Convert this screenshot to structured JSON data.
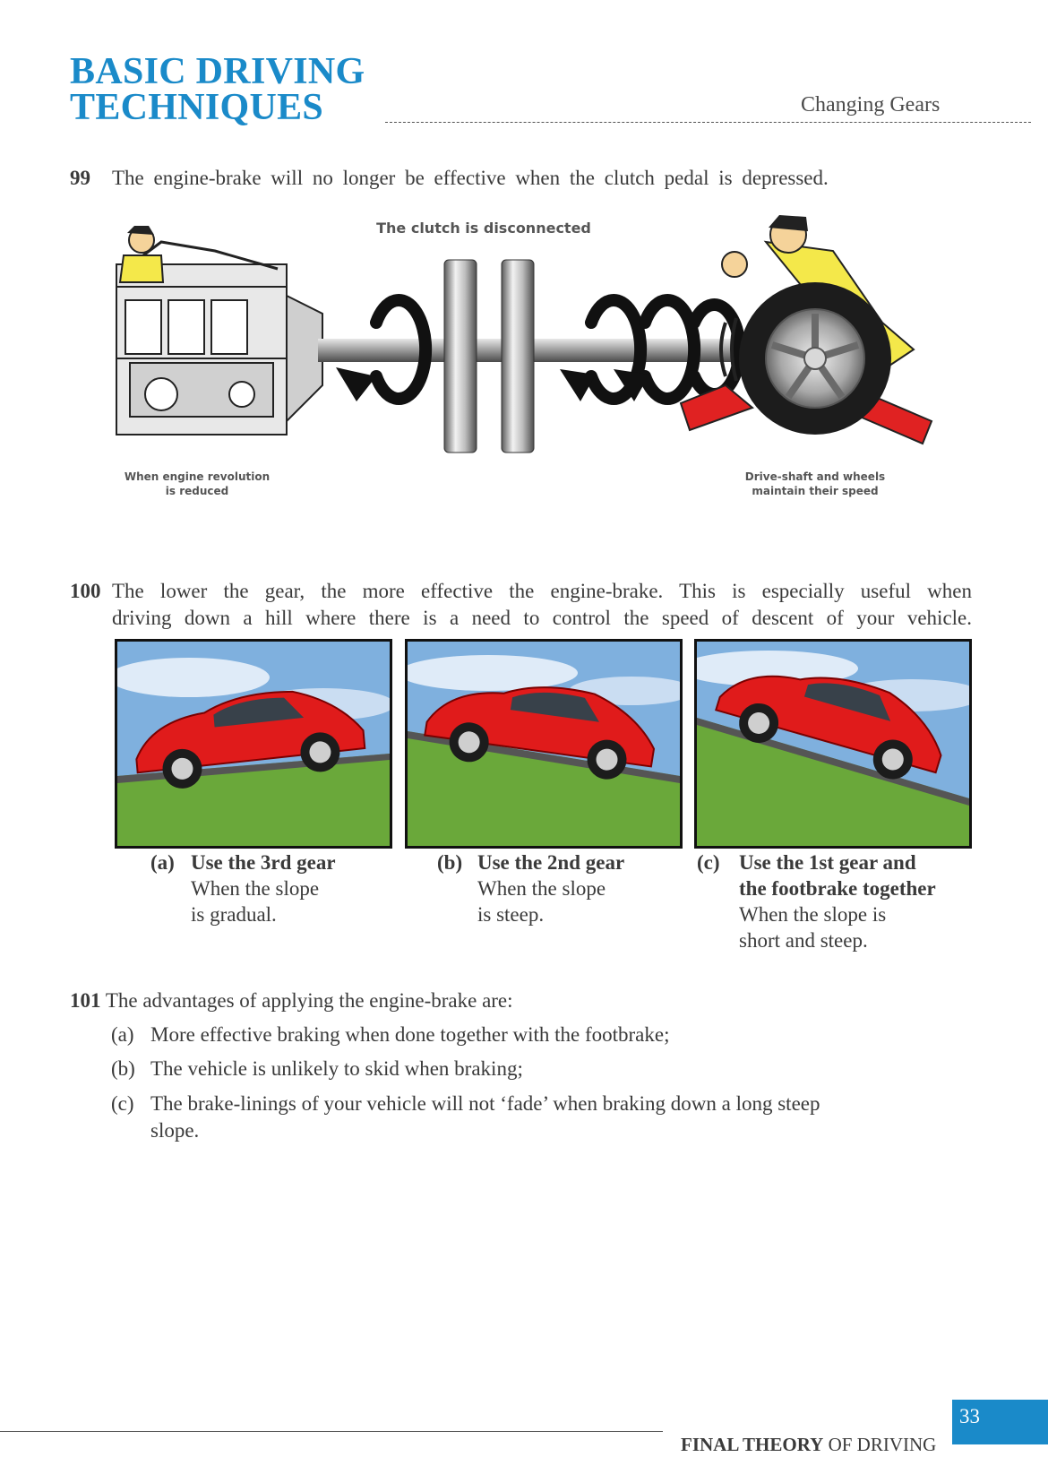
{
  "header": {
    "title_line1": "BASIC DRIVING",
    "title_line2": "TECHNIQUES",
    "section": "Changing Gears"
  },
  "items": {
    "n99": "99",
    "t99": "The engine-brake will no longer be effective when the clutch pedal is depressed.",
    "n100": "100",
    "t100_line1": "The lower the gear, the more effective the engine-brake. This is especially useful when",
    "t100_line2": "driving down a hill where there is a need to control the speed of descent of your vehicle.",
    "n101": "101",
    "t101": "The advantages of applying the engine-brake are:"
  },
  "diagram": {
    "top_label": "The clutch is disconnected",
    "left_label_1": "When engine revolution",
    "left_label_2": "is reduced",
    "right_label_1": "Drive-shaft and wheels",
    "right_label_2": "maintain their speed"
  },
  "captions": [
    {
      "tag": "(a)",
      "heading": "Use the 3rd gear",
      "line1": "When the slope",
      "line2": "is gradual."
    },
    {
      "tag": "(b)",
      "heading": "Use the 2nd gear",
      "line1": "When the slope",
      "line2": "is steep."
    },
    {
      "tag": "(c)",
      "heading1": "Use the 1st gear and",
      "heading2": "the footbrake together",
      "line1": "When the slope is",
      "line2": "short and steep."
    }
  ],
  "advantages": [
    {
      "label": "(a)",
      "text": "More effective braking when done together with the footbrake;"
    },
    {
      "label": "(b)",
      "text": "The vehicle is unlikely to skid when braking;"
    },
    {
      "label": "(c)",
      "text1": "The brake-linings of your vehicle will not ‘fade’ when braking down a long steep",
      "text2": "slope."
    }
  ],
  "footer": {
    "bold": "FINAL THEORY",
    "rest": " OF DRIVING",
    "page": "33"
  },
  "colors": {
    "accent": "#1a8ac9",
    "car": "#e01b1b",
    "grass": "#6aa83a",
    "sky": "#7fb0de"
  }
}
